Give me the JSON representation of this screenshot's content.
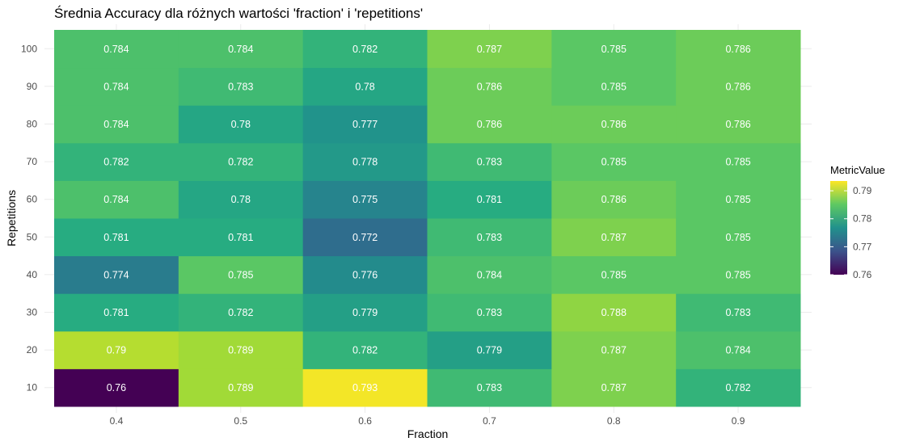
{
  "chart_data": {
    "type": "heatmap",
    "title": "Średnia Accuracy dla różnych wartości 'fraction' i 'repetitions'",
    "xlabel": "Fraction",
    "ylabel": "Repetitions",
    "x_categories": [
      "0.4",
      "0.5",
      "0.6",
      "0.7",
      "0.8",
      "0.9"
    ],
    "y_categories": [
      "10",
      "20",
      "30",
      "40",
      "50",
      "60",
      "70",
      "80",
      "90",
      "100"
    ],
    "values": {
      "10": [
        0.76,
        0.789,
        0.793,
        0.783,
        0.787,
        0.782
      ],
      "20": [
        0.79,
        0.789,
        0.782,
        0.779,
        0.787,
        0.784
      ],
      "30": [
        0.781,
        0.782,
        0.779,
        0.783,
        0.788,
        0.783
      ],
      "40": [
        0.774,
        0.785,
        0.776,
        0.784,
        0.785,
        0.785
      ],
      "50": [
        0.781,
        0.781,
        0.772,
        0.783,
        0.787,
        0.785
      ],
      "60": [
        0.784,
        0.78,
        0.775,
        0.781,
        0.786,
        0.785
      ],
      "70": [
        0.782,
        0.782,
        0.778,
        0.783,
        0.785,
        0.785
      ],
      "80": [
        0.784,
        0.78,
        0.777,
        0.786,
        0.786,
        0.786
      ],
      "90": [
        0.784,
        0.783,
        0.78,
        0.786,
        0.785,
        0.786
      ],
      "100": [
        0.784,
        0.784,
        0.782,
        0.787,
        0.785,
        0.786
      ]
    },
    "legend": {
      "title": "MetricValue",
      "ticks": [
        "0.79",
        "0.78",
        "0.77",
        "0.76"
      ],
      "min": 0.76,
      "max": 0.7935,
      "placement": "right"
    },
    "colormap": "viridis",
    "grid": true
  }
}
